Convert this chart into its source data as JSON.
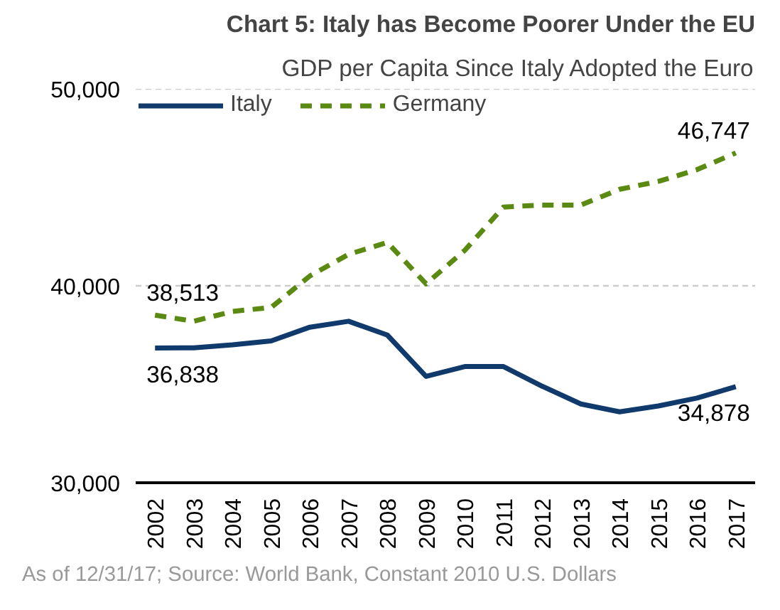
{
  "chart_data": {
    "type": "line",
    "title": "Chart 5: Italy has Become Poorer Under the EU",
    "subtitle": "GDP per Capita Since Italy Adopted the Euro",
    "categories": [
      "2002",
      "2003",
      "2004",
      "2005",
      "2006",
      "2007",
      "2008",
      "2009",
      "2010",
      "2011",
      "2012",
      "2013",
      "2014",
      "2015",
      "2016",
      "2017"
    ],
    "series": [
      {
        "name": "Italy",
        "color": "#0f3a6b",
        "line_style": "solid",
        "values": [
          36838,
          36850,
          37000,
          37200,
          37900,
          38200,
          37500,
          35400,
          35900,
          35900,
          34900,
          34000,
          33600,
          33900,
          34300,
          34878
        ],
        "value_labels": [
          "36,838",
          null,
          null,
          null,
          null,
          null,
          null,
          null,
          null,
          null,
          null,
          null,
          null,
          null,
          null,
          "34,878"
        ]
      },
      {
        "name": "Germany",
        "color": "#5b8a12",
        "line_style": "dashed",
        "values": [
          38513,
          38200,
          38700,
          38900,
          40500,
          41600,
          42200,
          40100,
          41800,
          44000,
          44100,
          44100,
          44900,
          45300,
          45900,
          46747
        ],
        "value_labels": [
          "38,513",
          null,
          null,
          null,
          null,
          null,
          null,
          null,
          null,
          null,
          null,
          null,
          null,
          null,
          null,
          "46,747"
        ]
      }
    ],
    "ylim": [
      30000,
      50000
    ],
    "yticks": [
      {
        "value": 30000,
        "label": "30,000"
      },
      {
        "value": 40000,
        "label": "40,000"
      },
      {
        "value": 50000,
        "label": "50,000"
      }
    ],
    "grid": "y",
    "legend": "top left",
    "annotations": [
      "As of 12/31/17; Source: World Bank, Constant 2010 U.S. Dollars"
    ]
  }
}
